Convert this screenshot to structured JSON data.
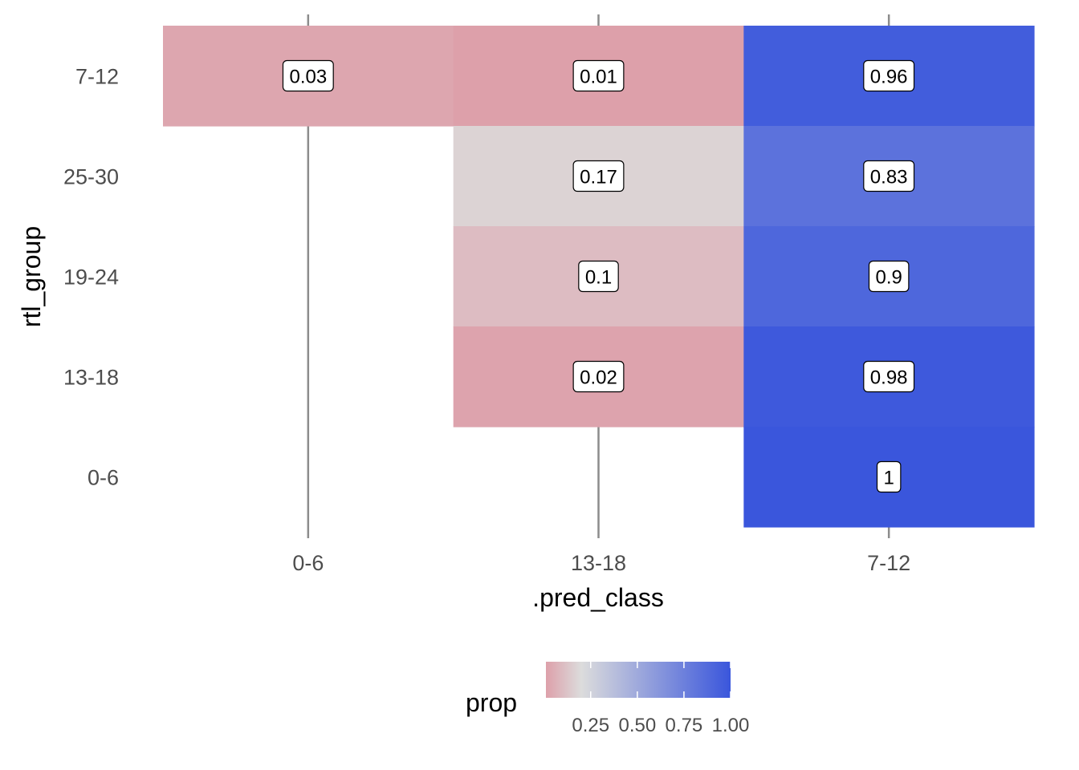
{
  "chart_data": {
    "type": "heatmap",
    "xlabel": ".pred_class",
    "ylabel": "rtl_group",
    "x_categories": [
      "0-6",
      "13-18",
      "7-12"
    ],
    "y_categories": [
      "0-6",
      "13-18",
      "19-24",
      "25-30",
      "7-12"
    ],
    "cells": [
      {
        "x": "0-6",
        "y": "7-12",
        "value": 0.03,
        "label": "0.03"
      },
      {
        "x": "13-18",
        "y": "7-12",
        "value": 0.01,
        "label": "0.01"
      },
      {
        "x": "7-12",
        "y": "7-12",
        "value": 0.96,
        "label": "0.96"
      },
      {
        "x": "13-18",
        "y": "25-30",
        "value": 0.17,
        "label": "0.17"
      },
      {
        "x": "7-12",
        "y": "25-30",
        "value": 0.83,
        "label": "0.83"
      },
      {
        "x": "13-18",
        "y": "19-24",
        "value": 0.1,
        "label": "0.1"
      },
      {
        "x": "7-12",
        "y": "19-24",
        "value": 0.9,
        "label": "0.9"
      },
      {
        "x": "13-18",
        "y": "13-18",
        "value": 0.02,
        "label": "0.02"
      },
      {
        "x": "7-12",
        "y": "13-18",
        "value": 0.98,
        "label": "0.98"
      },
      {
        "x": "7-12",
        "y": "0-6",
        "value": 1,
        "label": "1"
      }
    ],
    "legend": {
      "title": "prop",
      "position": "bottom",
      "ticks": [
        0.25,
        0.5,
        0.75,
        1.0
      ],
      "tick_labels": [
        "0.25",
        "0.50",
        "0.75",
        "1.00"
      ],
      "range": [
        0.01,
        1.0
      ],
      "midpoint": 0.2
    },
    "colors": {
      "low": "#dda0aa",
      "mid": "#dcdcdc",
      "high": "#3a56dc",
      "gridline": "#8c8c8c"
    },
    "grid": "vertical-major-x"
  }
}
